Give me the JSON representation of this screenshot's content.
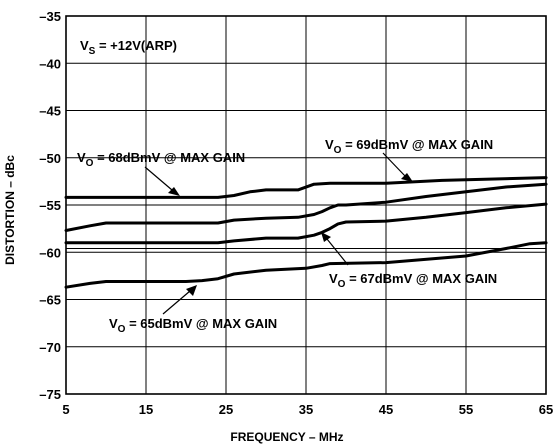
{
  "chart_data": {
    "type": "line",
    "title": "",
    "xlabel": "FREQUENCY – MHz",
    "ylabel": "DISTORTION – dBc",
    "xlim": [
      5,
      65
    ],
    "ylim": [
      -75,
      -35
    ],
    "x_ticks": [
      "5",
      "15",
      "25",
      "35",
      "45",
      "55",
      "65"
    ],
    "y_ticks": [
      "–35",
      "–40",
      "–45",
      "–50",
      "–55",
      "–60",
      "–65",
      "–70",
      "–75"
    ],
    "grid": true,
    "condition": {
      "main": "V",
      "sub": "S",
      "rest": " = +12V(ARP)"
    },
    "series": [
      {
        "label_main": "V",
        "label_sub": "O",
        "label_rest": " = 69dBmV @ MAX GAIN",
        "x": [
          5,
          24,
          26,
          28,
          30,
          34,
          36,
          38,
          45,
          52,
          65
        ],
        "y": [
          -54.2,
          -54.2,
          -54.0,
          -53.6,
          -53.4,
          -53.4,
          -52.8,
          -52.7,
          -52.7,
          -52.4,
          -52.1
        ]
      },
      {
        "label_main": "V",
        "label_sub": "O",
        "label_rest": " = 68dBmV @ MAX GAIN",
        "x": [
          5,
          8,
          10,
          24,
          26,
          30,
          34,
          36,
          37,
          38,
          39,
          40,
          45,
          50,
          55,
          60,
          65
        ],
        "y": [
          -57.7,
          -57.2,
          -56.9,
          -56.9,
          -56.6,
          -56.4,
          -56.3,
          -56.0,
          -55.7,
          -55.3,
          -55.0,
          -55.0,
          -54.7,
          -54.1,
          -53.6,
          -53.1,
          -52.8
        ]
      },
      {
        "label_main": "V",
        "label_sub": "O",
        "label_rest": " = 67dBmV @ MAX GAIN",
        "x": [
          5,
          24,
          26,
          30,
          34,
          36,
          37,
          38,
          39,
          40,
          45,
          50,
          55,
          60,
          65
        ],
        "y": [
          -59.0,
          -59.0,
          -58.8,
          -58.5,
          -58.5,
          -58.2,
          -57.9,
          -57.5,
          -57.0,
          -56.8,
          -56.7,
          -56.3,
          -55.8,
          -55.3,
          -54.9
        ]
      },
      {
        "label_main": "V",
        "label_sub": "O",
        "label_rest": " = 65dBmV @ MAX GAIN",
        "x": [
          5,
          8,
          10,
          20,
          22,
          24,
          26,
          30,
          35,
          37,
          38,
          45,
          55,
          60,
          63,
          65
        ],
        "y": [
          -63.7,
          -63.3,
          -63.1,
          -63.1,
          -63.0,
          -62.8,
          -62.3,
          -61.9,
          -61.7,
          -61.4,
          -61.2,
          -61.1,
          -60.4,
          -59.6,
          -59.1,
          -59.0
        ]
      }
    ],
    "reference_lines_y": [
      -55.0,
      -59.6
    ]
  }
}
